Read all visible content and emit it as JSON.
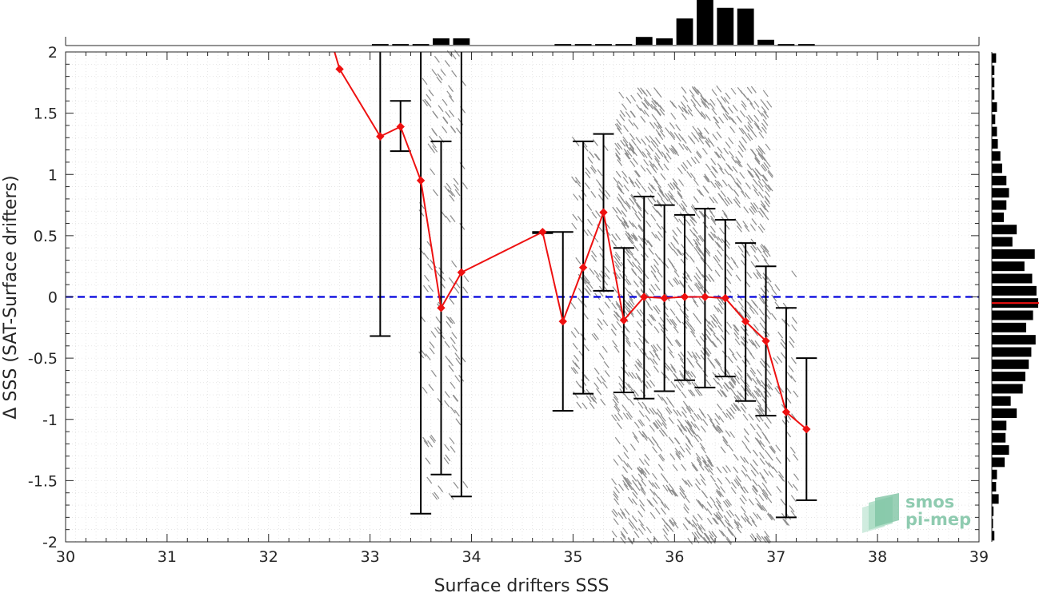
{
  "chart_data": {
    "type": "scatter",
    "xlabel": "Surface drifters SSS",
    "ylabel": "Δ SSS (SAT-Surface drifters)",
    "xlim": [
      30,
      39
    ],
    "ylim": [
      -2,
      2
    ],
    "x_ticks": [
      "30",
      "31",
      "32",
      "33",
      "34",
      "35",
      "36",
      "37",
      "38",
      "39"
    ],
    "y_ticks": [
      "-2",
      "-1.5",
      "-1",
      "-0.5",
      "0",
      "0.5",
      "1",
      "1.5",
      "2"
    ],
    "grid": "minor-dotted",
    "reference_line": {
      "y": 0,
      "style": "dashed",
      "color": "#0000dd"
    },
    "binned_stats": {
      "color": "#ee1111",
      "points": [
        {
          "x": 32.7,
          "y": 1.86,
          "lo": null,
          "hi": null
        },
        {
          "x": 33.1,
          "y": 1.31,
          "lo": -0.32,
          "hi": 2.05
        },
        {
          "x": 33.3,
          "y": 1.39,
          "lo": 1.19,
          "hi": 1.6
        },
        {
          "x": 33.5,
          "y": 0.95,
          "lo": -1.77,
          "hi": 2.05
        },
        {
          "x": 33.7,
          "y": -0.09,
          "lo": -1.45,
          "hi": 1.27
        },
        {
          "x": 33.9,
          "y": 0.2,
          "lo": -1.63,
          "hi": 2.05
        },
        {
          "x": 34.7,
          "y": 0.53,
          "lo": 0.52,
          "hi": 0.53
        },
        {
          "x": 34.9,
          "y": -0.2,
          "lo": -0.93,
          "hi": 0.53
        },
        {
          "x": 35.1,
          "y": 0.24,
          "lo": -0.79,
          "hi": 1.27
        },
        {
          "x": 35.3,
          "y": 0.69,
          "lo": 0.05,
          "hi": 1.33
        },
        {
          "x": 35.5,
          "y": -0.19,
          "lo": -0.78,
          "hi": 0.4
        },
        {
          "x": 35.7,
          "y": 0.0,
          "lo": -0.83,
          "hi": 0.82
        },
        {
          "x": 35.9,
          "y": -0.01,
          "lo": -0.77,
          "hi": 0.75
        },
        {
          "x": 36.1,
          "y": 0.0,
          "lo": -0.68,
          "hi": 0.67
        },
        {
          "x": 36.3,
          "y": 0.0,
          "lo": -0.74,
          "hi": 0.72
        },
        {
          "x": 36.5,
          "y": -0.01,
          "lo": -0.65,
          "hi": 0.63
        },
        {
          "x": 36.7,
          "y": -0.2,
          "lo": -0.85,
          "hi": 0.44
        },
        {
          "x": 36.9,
          "y": -0.36,
          "lo": -0.97,
          "hi": 0.25
        },
        {
          "x": 37.1,
          "y": -0.94,
          "lo": -1.8,
          "hi": -0.09
        },
        {
          "x": 37.3,
          "y": -1.08,
          "lo": -1.66,
          "hi": -0.5
        }
      ]
    },
    "scatter_color": "#8c8c8c",
    "scatter_clusters": [
      {
        "x": [
          33.5,
          33.95
        ],
        "y": [
          -1.65,
          2.0
        ],
        "n": 140
      },
      {
        "x": [
          35.0,
          35.35
        ],
        "y": [
          -0.9,
          1.3
        ],
        "n": 120
      },
      {
        "x": [
          35.4,
          36.95
        ],
        "y": [
          -2.0,
          1.7
        ],
        "n": 1500
      },
      {
        "x": [
          36.95,
          37.2
        ],
        "y": [
          -1.9,
          0.2
        ],
        "n": 60
      }
    ],
    "top_histogram": {
      "bin_centers": [
        33.1,
        33.3,
        33.5,
        33.7,
        33.9,
        34.1,
        34.3,
        34.5,
        34.7,
        34.9,
        35.1,
        35.3,
        35.5,
        35.7,
        35.9,
        36.1,
        36.3,
        36.5,
        36.7,
        36.9,
        37.1,
        37.3
      ],
      "counts": [
        1,
        1,
        1,
        9,
        9,
        0,
        0,
        0,
        0,
        1,
        1,
        1,
        1,
        11,
        9,
        37,
        63,
        52,
        51,
        7,
        1,
        1
      ]
    },
    "right_histogram": {
      "bin_centers": [
        1.95,
        1.85,
        1.75,
        1.65,
        1.55,
        1.45,
        1.35,
        1.25,
        1.15,
        1.05,
        0.95,
        0.85,
        0.75,
        0.65,
        0.55,
        0.45,
        0.35,
        0.25,
        0.15,
        0.05,
        -0.05,
        -0.15,
        -0.25,
        -0.35,
        -0.45,
        -0.55,
        -0.65,
        -0.75,
        -0.85,
        -0.95,
        -1.05,
        -1.15,
        -1.25,
        -1.35,
        -1.45,
        -1.55,
        -1.65,
        -1.75,
        -1.85,
        -1.95
      ],
      "counts": [
        5,
        3,
        3,
        3,
        6,
        4,
        6,
        7,
        10,
        12,
        17,
        20,
        17,
        14,
        29,
        24,
        50,
        38,
        47,
        52,
        54,
        48,
        40,
        51,
        46,
        43,
        39,
        36,
        22,
        29,
        17,
        16,
        20,
        15,
        6,
        5,
        8,
        2,
        1,
        3
      ],
      "median_marker": {
        "y": -0.05,
        "color": "#ee1111"
      }
    }
  },
  "watermark": {
    "text_line1": "smos",
    "text_line2": "pi-mep"
  }
}
